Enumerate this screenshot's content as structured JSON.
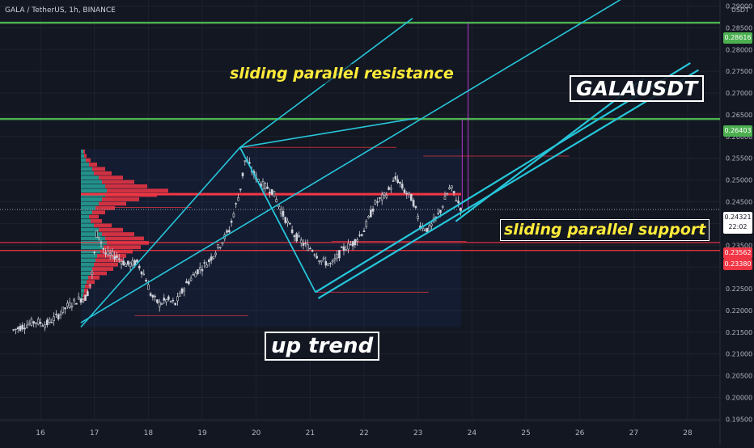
{
  "symbol": {
    "title": "GALA / TetherUS, 1h, BINANCE",
    "currency": "USDT"
  },
  "annotations": {
    "resistance": "sliding parallel resistance",
    "support": "sliding parallel support",
    "pair": "GALAUSDT",
    "trend": "up trend"
  },
  "price_tags": {
    "green_upper": "0.28616",
    "green_lower": "0.26403",
    "red_upper": "0.23562",
    "red_lower": "0.23380",
    "last_price": "0.24321",
    "countdown": "22:02"
  },
  "colors": {
    "background": "#131722",
    "candle": "#d1d4dc",
    "channel": "#26c6da",
    "green_level": "#4caf50",
    "red_level": "#f23645",
    "vp_up": "#26a69a",
    "vp_down": "#f23645",
    "label_yellow": "#ffeb3b"
  },
  "chart_data": {
    "type": "line",
    "title": "GALA / TetherUS, 1h, BINANCE",
    "xlabel": "",
    "ylabel": "USDT",
    "x_ticks": [
      "16",
      "17",
      "18",
      "19",
      "20",
      "21",
      "22",
      "23",
      "24",
      "25",
      "26",
      "27",
      "28"
    ],
    "y_ticks": [
      "0.29000",
      "0.28500",
      "0.28000",
      "0.27500",
      "0.27000",
      "0.26500",
      "0.26000",
      "0.25500",
      "0.25000",
      "0.24500",
      "0.24000",
      "0.23500",
      "0.23000",
      "0.22500",
      "0.22000",
      "0.21500",
      "0.21000",
      "0.20500",
      "0.20000",
      "0.19500"
    ],
    "ylim": [
      0.1947,
      0.2914
    ],
    "grid": true,
    "series": [
      {
        "x": [
          15.5,
          15.7,
          15.9,
          16.1,
          16.3,
          16.5,
          16.7,
          16.85,
          16.95,
          17.05,
          17.2,
          17.4,
          17.6,
          17.8,
          17.95,
          18.05,
          18.2,
          18.35,
          18.5,
          18.7,
          18.9,
          19.1,
          19.3,
          19.5,
          19.7,
          19.8,
          19.95,
          20.1,
          20.3,
          20.5,
          20.7,
          20.9,
          21.05,
          21.2,
          21.4,
          21.6,
          21.8,
          22.0,
          22.2,
          22.4,
          22.6,
          22.75,
          22.9,
          23.05,
          23.2,
          23.4,
          23.6,
          23.8
        ],
        "values": [
          0.2155,
          0.2165,
          0.2175,
          0.2168,
          0.2185,
          0.221,
          0.2225,
          0.223,
          0.2275,
          0.2385,
          0.233,
          0.2325,
          0.2305,
          0.231,
          0.2275,
          0.2235,
          0.2215,
          0.2225,
          0.2215,
          0.226,
          0.229,
          0.231,
          0.2345,
          0.2385,
          0.2475,
          0.255,
          0.2515,
          0.249,
          0.2475,
          0.242,
          0.2375,
          0.235,
          0.234,
          0.2315,
          0.2305,
          0.234,
          0.2355,
          0.2385,
          0.2445,
          0.2465,
          0.2505,
          0.2475,
          0.2455,
          0.2395,
          0.2385,
          0.2425,
          0.2485,
          0.2435
        ]
      }
    ],
    "levels": [
      {
        "price": 0.28616,
        "color": "green"
      },
      {
        "price": 0.26403,
        "color": "green"
      },
      {
        "price": 0.24674,
        "color": "red"
      },
      {
        "price": 0.23562,
        "color": "red"
      },
      {
        "price": 0.2338,
        "color": "red"
      }
    ],
    "last_price": 0.24321,
    "channels": [
      {
        "name": "resistance",
        "from": [
          19.7,
          0.2575
        ],
        "to": [
          22.9,
          0.2872
        ]
      },
      {
        "name": "resistance",
        "from": [
          16.75,
          0.2172
        ],
        "to": [
          27.2,
          0.2948
        ]
      },
      {
        "name": "support",
        "from": [
          21.1,
          0.2242
        ],
        "to": [
          28.05,
          0.2769
        ]
      },
      {
        "name": "support",
        "from": [
          21.15,
          0.2228
        ],
        "to": [
          28.2,
          0.2753
        ]
      },
      {
        "name": "support",
        "from": [
          23.7,
          0.2405
        ],
        "to": [
          27.2,
          0.2735
        ]
      }
    ],
    "volume_profile": {
      "up": [
        {
          "price": 0.2565,
          "size": 3
        },
        {
          "price": 0.2555,
          "size": 4
        },
        {
          "price": 0.2545,
          "size": 6
        },
        {
          "price": 0.2535,
          "size": 10
        },
        {
          "price": 0.2525,
          "size": 14
        },
        {
          "price": 0.2515,
          "size": 16
        },
        {
          "price": 0.2505,
          "size": 22
        },
        {
          "price": 0.2495,
          "size": 26
        },
        {
          "price": 0.2485,
          "size": 30
        },
        {
          "price": 0.2475,
          "size": 32
        },
        {
          "price": 0.2465,
          "size": 30
        },
        {
          "price": 0.2455,
          "size": 26
        },
        {
          "price": 0.2445,
          "size": 22
        },
        {
          "price": 0.2435,
          "size": 18
        },
        {
          "price": 0.2425,
          "size": 14
        },
        {
          "price": 0.2415,
          "size": 10
        },
        {
          "price": 0.2405,
          "size": 12
        },
        {
          "price": 0.2395,
          "size": 16
        },
        {
          "price": 0.2385,
          "size": 22
        },
        {
          "price": 0.2375,
          "size": 26
        },
        {
          "price": 0.2365,
          "size": 30
        },
        {
          "price": 0.2355,
          "size": 32
        },
        {
          "price": 0.2345,
          "size": 28
        },
        {
          "price": 0.2335,
          "size": 24
        },
        {
          "price": 0.2325,
          "size": 20
        },
        {
          "price": 0.2315,
          "size": 18
        },
        {
          "price": 0.2305,
          "size": 16
        },
        {
          "price": 0.2295,
          "size": 14
        },
        {
          "price": 0.2285,
          "size": 12
        },
        {
          "price": 0.2275,
          "size": 9
        },
        {
          "price": 0.2265,
          "size": 7
        },
        {
          "price": 0.2255,
          "size": 5
        },
        {
          "price": 0.2245,
          "size": 4
        },
        {
          "price": 0.2235,
          "size": 3
        },
        {
          "price": 0.2225,
          "size": 2
        }
      ],
      "down": [
        {
          "price": 0.2565,
          "size": 2
        },
        {
          "price": 0.2555,
          "size": 3
        },
        {
          "price": 0.2545,
          "size": 6
        },
        {
          "price": 0.2535,
          "size": 10
        },
        {
          "price": 0.2525,
          "size": 16
        },
        {
          "price": 0.2515,
          "size": 22
        },
        {
          "price": 0.2505,
          "size": 30
        },
        {
          "price": 0.2495,
          "size": 40
        },
        {
          "price": 0.2485,
          "size": 52
        },
        {
          "price": 0.2475,
          "size": 76
        },
        {
          "price": 0.2465,
          "size": 64
        },
        {
          "price": 0.2455,
          "size": 46
        },
        {
          "price": 0.2445,
          "size": 34
        },
        {
          "price": 0.2435,
          "size": 24
        },
        {
          "price": 0.2425,
          "size": 16
        },
        {
          "price": 0.2415,
          "size": 12
        },
        {
          "price": 0.2405,
          "size": 14
        },
        {
          "price": 0.2395,
          "size": 22
        },
        {
          "price": 0.2385,
          "size": 30
        },
        {
          "price": 0.2375,
          "size": 40
        },
        {
          "price": 0.2365,
          "size": 48
        },
        {
          "price": 0.2355,
          "size": 52
        },
        {
          "price": 0.2345,
          "size": 46
        },
        {
          "price": 0.2335,
          "size": 40
        },
        {
          "price": 0.2325,
          "size": 36
        },
        {
          "price": 0.2315,
          "size": 34
        },
        {
          "price": 0.2305,
          "size": 30
        },
        {
          "price": 0.2295,
          "size": 26
        },
        {
          "price": 0.2285,
          "size": 20
        },
        {
          "price": 0.2275,
          "size": 14
        },
        {
          "price": 0.2265,
          "size": 10
        },
        {
          "price": 0.2255,
          "size": 8
        },
        {
          "price": 0.2245,
          "size": 5
        },
        {
          "price": 0.2235,
          "size": 4
        },
        {
          "price": 0.2225,
          "size": 3
        }
      ]
    }
  }
}
